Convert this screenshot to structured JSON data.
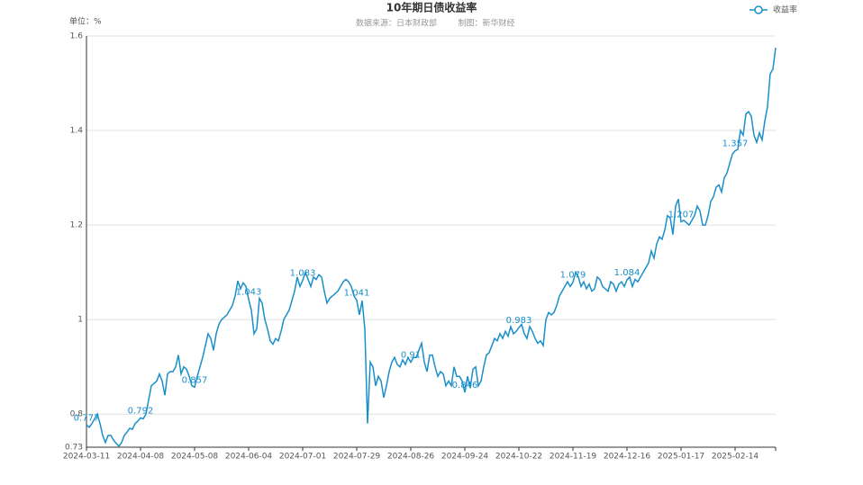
{
  "chart_data": {
    "type": "line",
    "title": "10年期日债收益率",
    "source": "数据来源：日本财政部",
    "credit": "制图：新华财经",
    "y_axis_label": "单位：%",
    "categories": [
      "2024-03-11",
      null,
      null,
      null,
      null,
      null,
      null,
      null,
      null,
      null,
      null,
      null,
      null,
      null,
      null,
      null,
      null,
      null,
      null,
      null,
      "2024-04-08",
      null,
      null,
      null,
      null,
      null,
      null,
      null,
      null,
      null,
      null,
      null,
      null,
      null,
      null,
      null,
      null,
      null,
      null,
      null,
      "2024-05-08",
      null,
      null,
      null,
      null,
      null,
      null,
      null,
      null,
      null,
      null,
      null,
      null,
      null,
      null,
      null,
      null,
      null,
      null,
      null,
      "2024-06-04",
      null,
      null,
      null,
      null,
      null,
      null,
      null,
      null,
      null,
      null,
      null,
      null,
      null,
      null,
      null,
      null,
      null,
      null,
      null,
      "2024-07-01",
      null,
      null,
      null,
      null,
      null,
      null,
      null,
      null,
      null,
      null,
      null,
      null,
      null,
      null,
      null,
      null,
      null,
      null,
      null,
      "2024-07-29",
      null,
      null,
      null,
      null,
      null,
      null,
      null,
      null,
      null,
      null,
      null,
      null,
      null,
      null,
      null,
      null,
      null,
      null,
      null,
      "2024-08-26",
      null,
      null,
      null,
      null,
      null,
      null,
      null,
      null,
      null,
      null,
      null,
      null,
      null,
      null,
      null,
      null,
      null,
      null,
      null,
      "2024-09-24",
      null,
      null,
      null,
      null,
      null,
      null,
      null,
      null,
      null,
      null,
      null,
      null,
      null,
      null,
      null,
      null,
      null,
      null,
      null,
      "2024-10-22",
      null,
      null,
      null,
      null,
      null,
      null,
      null,
      null,
      null,
      null,
      null,
      null,
      null,
      null,
      null,
      null,
      null,
      null,
      null,
      "2024-11-19",
      null,
      null,
      null,
      null,
      null,
      null,
      null,
      null,
      null,
      null,
      null,
      null,
      null,
      null,
      null,
      null,
      null,
      null,
      null,
      "2024-12-16",
      null,
      null,
      null,
      null,
      null,
      null,
      null,
      null,
      null,
      null,
      null,
      null,
      null,
      null,
      null,
      null,
      null,
      null,
      null,
      "2025-01-17",
      null,
      null,
      null,
      null,
      null,
      null,
      null,
      null,
      null,
      null,
      null,
      null,
      null,
      null,
      null,
      null,
      null,
      null,
      null,
      "2025-02-14",
      null,
      null,
      null,
      null,
      null,
      null,
      null,
      null,
      null,
      null,
      null,
      null,
      null,
      null,
      null
    ],
    "series": [
      {
        "name": "收益率",
        "color": "#1a8fc9",
        "values": [
          0.777,
          0.772,
          0.78,
          0.79,
          0.8,
          0.78,
          0.755,
          0.74,
          0.755,
          0.755,
          0.745,
          0.738,
          0.732,
          0.74,
          0.755,
          0.762,
          0.77,
          0.768,
          0.78,
          0.785,
          0.792,
          0.79,
          0.8,
          0.83,
          0.86,
          0.865,
          0.87,
          0.885,
          0.87,
          0.84,
          0.885,
          0.89,
          0.89,
          0.9,
          0.925,
          0.885,
          0.9,
          0.895,
          0.88,
          0.86,
          0.857,
          0.88,
          0.9,
          0.92,
          0.945,
          0.97,
          0.96,
          0.935,
          0.97,
          0.99,
          1.0,
          1.005,
          1.01,
          1.02,
          1.03,
          1.05,
          1.082,
          1.065,
          1.078,
          1.07,
          1.043,
          1.02,
          0.97,
          0.98,
          1.045,
          1.035,
          1.0,
          0.98,
          0.955,
          0.948,
          0.96,
          0.955,
          0.975,
          1.0,
          1.01,
          1.02,
          1.04,
          1.06,
          1.09,
          1.07,
          1.083,
          1.1,
          1.085,
          1.07,
          1.09,
          1.085,
          1.095,
          1.09,
          1.06,
          1.035,
          1.045,
          1.05,
          1.055,
          1.06,
          1.07,
          1.08,
          1.085,
          1.08,
          1.07,
          1.05,
          1.041,
          1.01,
          1.04,
          0.98,
          0.78,
          0.91,
          0.9,
          0.86,
          0.88,
          0.87,
          0.835,
          0.86,
          0.89,
          0.91,
          0.92,
          0.905,
          0.9,
          0.915,
          0.905,
          0.92,
          0.91,
          0.92,
          0.92,
          0.935,
          0.95,
          0.91,
          0.89,
          0.925,
          0.925,
          0.9,
          0.88,
          0.89,
          0.885,
          0.86,
          0.87,
          0.86,
          0.9,
          0.88,
          0.88,
          0.87,
          0.846,
          0.88,
          0.855,
          0.895,
          0.9,
          0.86,
          0.87,
          0.9,
          0.925,
          0.93,
          0.945,
          0.96,
          0.955,
          0.97,
          0.96,
          0.975,
          0.965,
          0.985,
          0.97,
          0.975,
          0.983,
          0.99,
          0.97,
          0.96,
          0.985,
          0.975,
          0.96,
          0.95,
          0.955,
          0.945,
          1.0,
          1.015,
          1.01,
          1.015,
          1.03,
          1.05,
          1.06,
          1.07,
          1.08,
          1.07,
          1.079,
          1.1,
          1.09,
          1.07,
          1.08,
          1.065,
          1.075,
          1.06,
          1.065,
          1.09,
          1.085,
          1.07,
          1.065,
          1.06,
          1.08,
          1.075,
          1.06,
          1.075,
          1.08,
          1.07,
          1.084,
          1.09,
          1.07,
          1.085,
          1.08,
          1.09,
          1.1,
          1.11,
          1.12,
          1.145,
          1.13,
          1.16,
          1.175,
          1.17,
          1.19,
          1.22,
          1.215,
          1.18,
          1.24,
          1.255,
          1.207,
          1.21,
          1.205,
          1.2,
          1.21,
          1.22,
          1.24,
          1.23,
          1.2,
          1.2,
          1.22,
          1.25,
          1.26,
          1.28,
          1.285,
          1.27,
          1.3,
          1.31,
          1.33,
          1.35,
          1.357,
          1.36,
          1.4,
          1.39,
          1.435,
          1.44,
          1.43,
          1.39,
          1.375,
          1.395,
          1.38,
          1.42,
          1.45,
          1.52,
          1.53,
          1.575
        ]
      }
    ],
    "ylim": [
      0.73,
      1.6
    ],
    "yticks": [
      0.73,
      0.8,
      1,
      1.2,
      1.4,
      1.6
    ],
    "grid": true
  }
}
